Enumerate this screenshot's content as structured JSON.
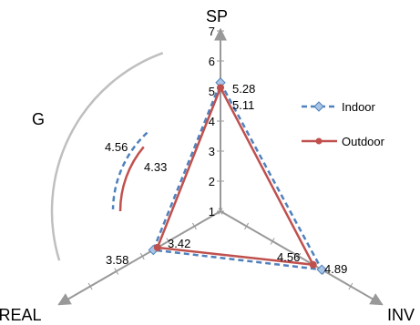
{
  "chart_data": {
    "type": "radar",
    "axes": [
      "SP",
      "INV",
      "REAL"
    ],
    "extra_label": "G",
    "rmin": 1,
    "rmax": 7,
    "ticks": [
      "1",
      "2",
      "3",
      "4",
      "5",
      "6",
      "7"
    ],
    "series": [
      {
        "name": "Indoor",
        "color": "#4f81bd",
        "dash": true,
        "marker": "diamond",
        "values": [
          5.28,
          4.89,
          3.58
        ],
        "labels": [
          "5.28",
          "4.89",
          "3.58"
        ],
        "g_value": "4.56",
        "g_range": [
          4.2,
          5.4
        ]
      },
      {
        "name": "Outdoor",
        "color": "#c0504d",
        "dash": false,
        "marker": "circle",
        "values": [
          5.11,
          4.56,
          3.42
        ],
        "labels": [
          "5.11",
          "4.56",
          "3.42"
        ],
        "g_value": "4.33",
        "g_range": [
          4.0,
          5.2
        ]
      }
    ],
    "legend_position": "right",
    "grid": false
  }
}
